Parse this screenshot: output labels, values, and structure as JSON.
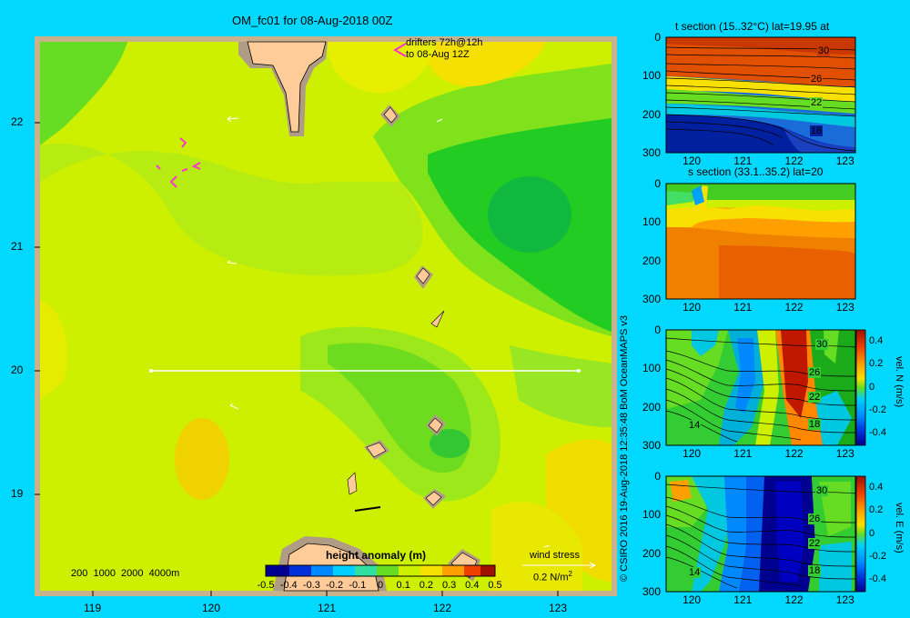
{
  "main_map": {
    "title": "OM_fc01 for 08-Aug-2018 00Z",
    "drifter_note_1": "drifters 72h@12h",
    "drifter_note_2": "to 08-Aug 12Z",
    "y_ticks": [
      "22",
      "21",
      "20",
      "19"
    ],
    "x_ticks": [
      "119",
      "120",
      "121",
      "122",
      "123"
    ],
    "depth_legend": "200  1000  2000  4000m",
    "colorbar_title": "height anomaly (m)",
    "colorbar_ticks": [
      "-0.5",
      "-0.4",
      "-0.3",
      "-0.2",
      "-0.1",
      "0",
      "0.1",
      "0.2",
      "0.3",
      "0.4",
      "0.5"
    ],
    "wind_label": "wind stress",
    "wind_scale": "0.2 N/m",
    "wind_scale_sup": "2",
    "section_line": {
      "lat": 20,
      "lon_start": 119.5,
      "lon_end": 123.2
    }
  },
  "credit": "© CSIRO 2016   19-Aug-2018 12:35:48 BoM OceanMAPS v3",
  "chart_data": [
    {
      "type": "heatmap",
      "title": "OM_fc01 for 08-Aug-2018 00Z",
      "x_ticks": [
        119,
        120,
        121,
        122,
        123
      ],
      "y_ticks": [
        19,
        20,
        21,
        22
      ],
      "colorbar_label": "height anomaly (m)",
      "colorbar_range": [
        -0.5,
        0.5
      ]
    },
    {
      "type": "heatmap",
      "title": "t section (15..32°C) lat=19.95 at",
      "x_ticks": [
        120,
        121,
        122,
        123
      ],
      "y_ticks": [
        0,
        100,
        200,
        300
      ],
      "contour_labels": [
        "30",
        "26",
        "22",
        "18"
      ]
    },
    {
      "type": "heatmap",
      "title": "s section (33.1..35.2) lat=20",
      "x_ticks": [
        120,
        121,
        122,
        123
      ],
      "y_ticks": [
        0,
        100,
        200,
        300
      ]
    },
    {
      "type": "heatmap",
      "x_ticks": [
        120,
        121,
        122,
        123
      ],
      "y_ticks": [
        0,
        100,
        200,
        300
      ],
      "contour_labels": [
        "30",
        "26",
        "22",
        "18",
        "14"
      ],
      "colorbar_label": "vel. N (m/s)",
      "colorbar_ticks": [
        "0.4",
        "0.2",
        "0",
        "-0.2",
        "-0.4"
      ]
    },
    {
      "type": "heatmap",
      "x_ticks": [
        120,
        121,
        122,
        123
      ],
      "y_ticks": [
        0,
        100,
        200,
        300
      ],
      "contour_labels": [
        "30",
        "26",
        "22",
        "18",
        "14"
      ],
      "colorbar_label": "vel. E (m/s)",
      "colorbar_ticks": [
        "0.4",
        "0.2",
        "0",
        "-0.2",
        "-0.4"
      ]
    }
  ],
  "panels": [
    {
      "title": "t section (15..32°C) lat=19.95 at",
      "labels": [
        "30",
        "26",
        "22",
        "18"
      ],
      "cb_label": "",
      "cb_ticks": []
    },
    {
      "title": "s section (33.1..35.2) lat=20",
      "labels": [],
      "cb_label": "",
      "cb_ticks": []
    },
    {
      "title": "",
      "labels": [
        "30",
        "26",
        "22",
        "18",
        "14"
      ],
      "cb_label": "vel. N (m/s)",
      "cb_ticks": [
        "0.4",
        "0.2",
        "0",
        "-0.2",
        "-0.4"
      ]
    },
    {
      "title": "",
      "labels": [
        "30",
        "26",
        "22",
        "18",
        "14"
      ],
      "cb_label": "vel. E (m/s)",
      "cb_ticks": [
        "0.4",
        "0.2",
        "0",
        "-0.2",
        "-0.4"
      ]
    }
  ],
  "section_axes": {
    "x_ticks": [
      "120",
      "121",
      "122",
      "123"
    ],
    "y_ticks": [
      "0",
      "100",
      "200",
      "300"
    ]
  }
}
